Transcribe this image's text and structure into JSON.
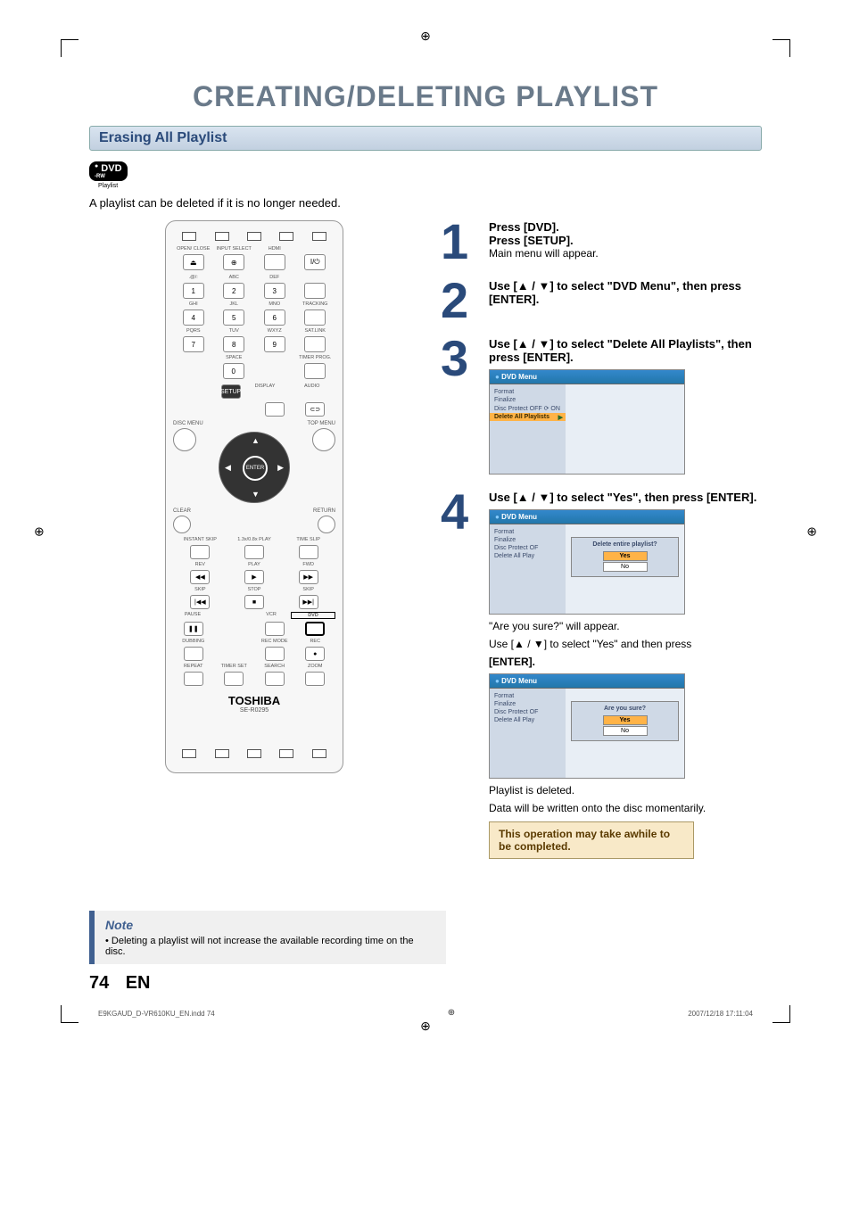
{
  "page": {
    "title": "CREATING/DELETING PLAYLIST",
    "title_color": "#6a7a8a",
    "section_header": "Erasing All Playlist",
    "section_header_color": "#2a4a7a",
    "badge_text": "DVD",
    "badge_sub1": "-RW",
    "badge_sub2": "VR MODE",
    "badge_playlist": "Playlist",
    "intro": "A playlist can be deleted if it is no longer needed.",
    "page_number": "74",
    "page_lang": "EN",
    "foot_file": "E9KGAUD_D-VR610KU_EN.indd   74",
    "foot_date": "2007/12/18   17:11:04"
  },
  "remote": {
    "labels_row1": [
      "OPEN/\nCLOSE",
      "INPUT\nSELECT",
      "HDMI",
      ""
    ],
    "num_labels": [
      ".@/:",
      "ABC",
      "DEF",
      "",
      "GHI",
      "JKL",
      "MNO",
      "TRACKING",
      "PQRS",
      "TUV",
      "WXYZ",
      "SAT.LINK",
      "",
      "SPACE",
      "",
      "TIMER\nPROG."
    ],
    "numbers": [
      "1",
      "2",
      "3",
      "",
      "4",
      "5",
      "6",
      "",
      "7",
      "8",
      "9",
      "",
      "",
      "0",
      "",
      ""
    ],
    "row_setup": [
      "SETUP",
      "DISPLAY",
      "AUDIO"
    ],
    "disc_menu": "DISC MENU",
    "top_menu": "TOP MENU",
    "enter": "ENTER",
    "clear": "CLEAR",
    "return": "RETURN",
    "transport_labels": [
      "INSTANT\nSKIP",
      "1.3x/0.8x\nPLAY",
      "TIME SLIP"
    ],
    "row_rev": [
      "REV",
      "PLAY",
      "FWD"
    ],
    "row_skip": [
      "SKIP",
      "STOP",
      "SKIP"
    ],
    "row_pause": [
      "PAUSE",
      "",
      "VCR",
      "DVD"
    ],
    "row_dub": [
      "DUBBING",
      "",
      "REC MODE",
      "REC"
    ],
    "row_bottom": [
      "REPEAT",
      "TIMER SET",
      "SEARCH",
      "ZOOM"
    ],
    "brand": "TOSHIBA",
    "model": "SE-R0295"
  },
  "steps": [
    {
      "num": "1",
      "lines": [
        {
          "text": "Press [DVD].",
          "bold": true
        },
        {
          "text": "Press [SETUP].",
          "bold": true
        },
        {
          "text": "Main menu will appear.",
          "bold": false
        }
      ]
    },
    {
      "num": "2",
      "lines": [
        {
          "text": "Use [▲ / ▼] to select \"DVD Menu\", then press [ENTER].",
          "bold": true
        }
      ]
    },
    {
      "num": "3",
      "lines": [
        {
          "text": "Use [▲ / ▼] to select \"Delete All Playlists\", then press [ENTER].",
          "bold": true
        }
      ],
      "osd": {
        "title": "DVD Menu",
        "items": [
          "Format",
          "Finalize",
          "Disc Protect OFF ⟳ ON",
          "Delete All Playlists"
        ],
        "selected": 3
      }
    },
    {
      "num": "4",
      "lines": [
        {
          "text": "Use [▲ / ▼] to select \"Yes\", then press [ENTER].",
          "bold": true
        }
      ],
      "osd": {
        "title": "DVD Menu",
        "items": [
          "Format",
          "Finalize",
          "Disc Protect OF",
          "Delete All Play"
        ],
        "dialog": {
          "q": "Delete entire playlist?",
          "opts": [
            "Yes",
            "No"
          ],
          "selected": 0
        }
      },
      "after": [
        "\"Are you sure?\" will appear.",
        "Use [▲ / ▼] to select \"Yes\" and then press",
        "[ENTER]."
      ],
      "osd2": {
        "title": "DVD Menu",
        "items": [
          "Format",
          "Finalize",
          "Disc Protect OF",
          "Delete All Play"
        ],
        "dialog": {
          "q": "Are you sure?",
          "opts": [
            "Yes",
            "No"
          ],
          "selected": 0
        }
      },
      "tail": [
        "Playlist is deleted.",
        "Data will be written onto the disc momentarily."
      ],
      "info": "This operation may take awhile to be completed."
    }
  ],
  "note": {
    "title": "Note",
    "body": "• Deleting a playlist will not increase the available recording time on the disc."
  },
  "colors": {
    "title": "#6a7a8a",
    "section_text": "#2a4a7a",
    "step_num": "#2a4a7a",
    "note_accent": "#406090",
    "info_bg": "#f8e9c8",
    "info_border": "#a98b4a",
    "osd_header": "#2a70b0",
    "osd_sel": "#ffb347"
  }
}
